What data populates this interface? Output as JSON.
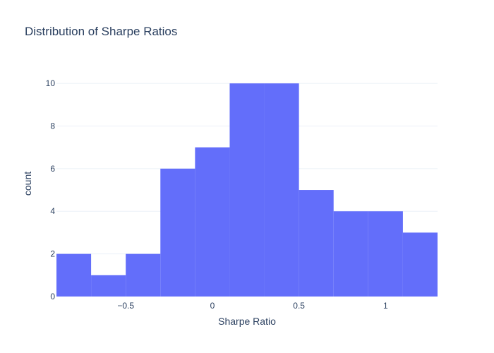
{
  "chart_data": {
    "type": "bar",
    "title": "Distribution of Sharpe Ratios",
    "xlabel": "Sharpe Ratio",
    "ylabel": "count",
    "bin_width": 0.2,
    "bins": [
      {
        "start": -0.9,
        "end": -0.7,
        "count": 2
      },
      {
        "start": -0.7,
        "end": -0.5,
        "count": 1
      },
      {
        "start": -0.5,
        "end": -0.3,
        "count": 2
      },
      {
        "start": -0.3,
        "end": -0.1,
        "count": 6
      },
      {
        "start": -0.1,
        "end": 0.1,
        "count": 7
      },
      {
        "start": 0.1,
        "end": 0.3,
        "count": 10
      },
      {
        "start": 0.3,
        "end": 0.5,
        "count": 10
      },
      {
        "start": 0.5,
        "end": 0.7,
        "count": 5
      },
      {
        "start": 0.7,
        "end": 0.9,
        "count": 4
      },
      {
        "start": 0.9,
        "end": 1.1,
        "count": 4
      },
      {
        "start": 1.1,
        "end": 1.3,
        "count": 3
      }
    ],
    "xlim": [
      -0.9,
      1.3
    ],
    "ylim": [
      0,
      10.6
    ],
    "xticks": [
      {
        "value": -0.5,
        "label": "−0.5"
      },
      {
        "value": 0,
        "label": "0"
      },
      {
        "value": 0.5,
        "label": "0.5"
      },
      {
        "value": 1,
        "label": "1"
      }
    ],
    "yticks": [
      {
        "value": 0,
        "label": "0"
      },
      {
        "value": 2,
        "label": "2"
      },
      {
        "value": 4,
        "label": "4"
      },
      {
        "value": 6,
        "label": "6"
      },
      {
        "value": 8,
        "label": "8"
      },
      {
        "value": 10,
        "label": "10"
      }
    ],
    "bar_color": "#636efa",
    "grid": true
  }
}
